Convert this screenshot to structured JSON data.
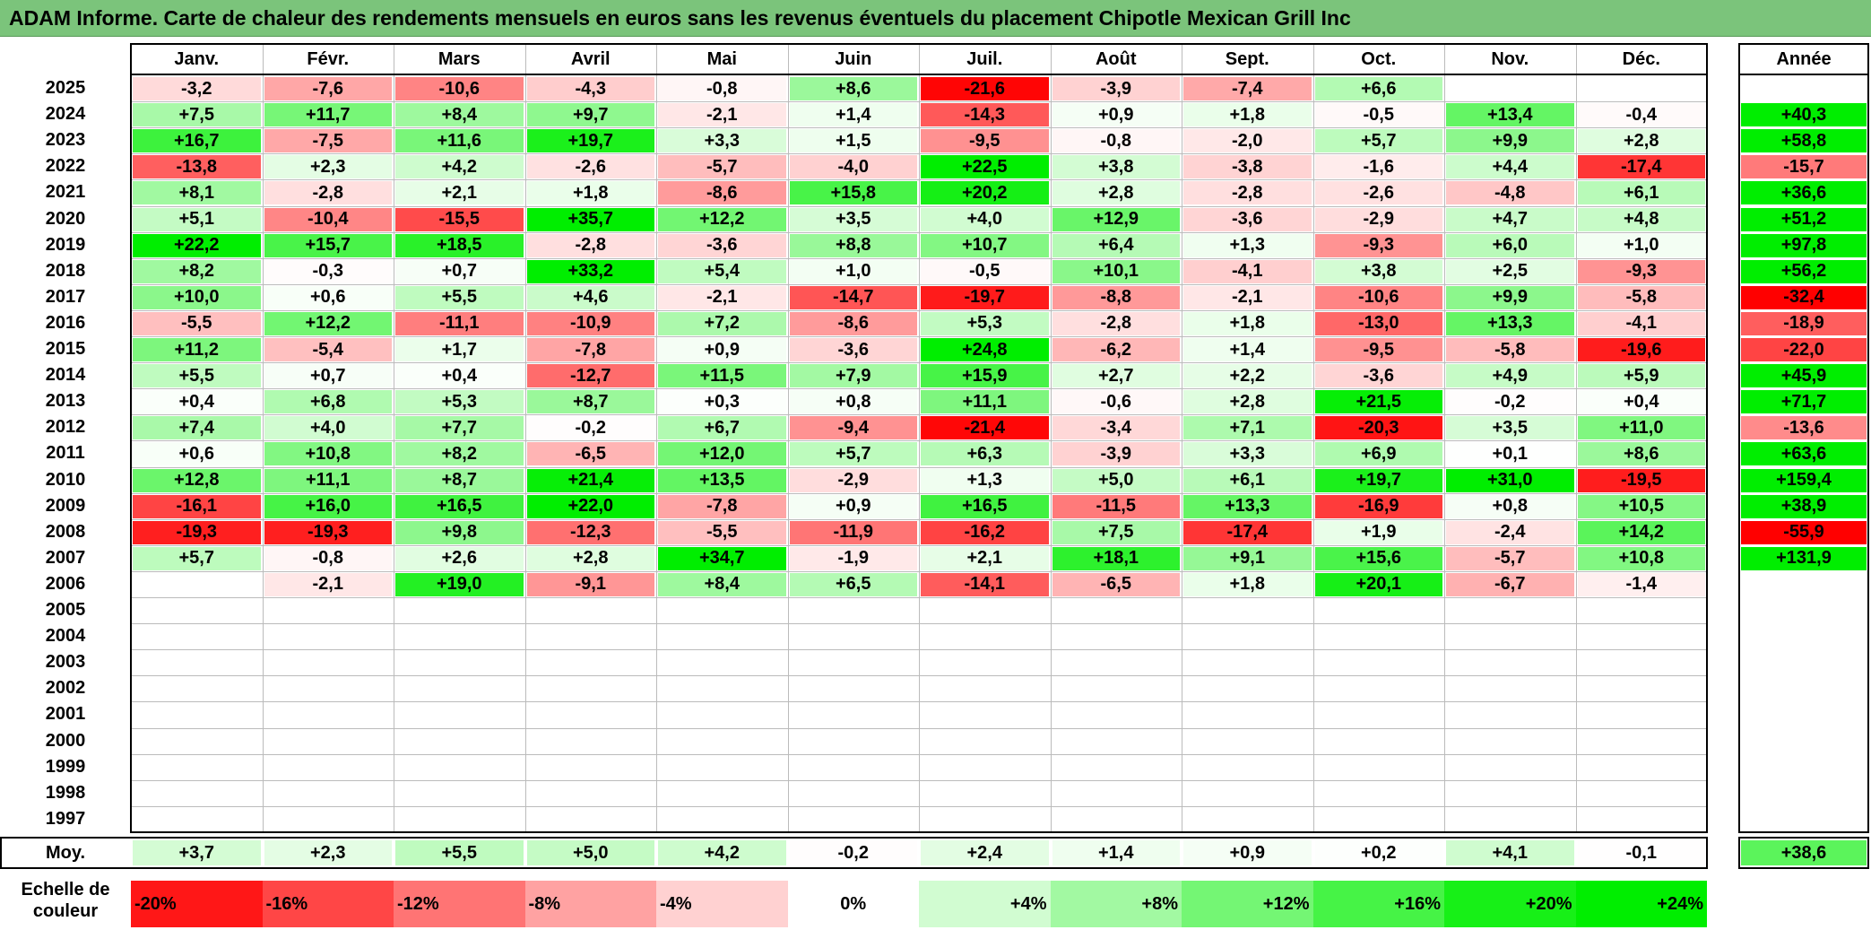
{
  "title": "ADAM Informe. Carte de chaleur des rendements mensuels en euros sans les revenus éventuels du placement Chipotle Mexican Grill Inc",
  "chart_data": {
    "type": "heatmap",
    "title": "ADAM Informe. Carte de chaleur des rendements mensuels en euros sans les revenus éventuels du placement Chipotle Mexican Grill Inc",
    "columns": [
      "Janv.",
      "Févr.",
      "Mars",
      "Avril",
      "Mai",
      "Juin",
      "Juil.",
      "Août",
      "Sept.",
      "Oct.",
      "Nov.",
      "Déc."
    ],
    "year_column_label": "Année",
    "years": [
      "2025",
      "2024",
      "2023",
      "2022",
      "2021",
      "2020",
      "2019",
      "2018",
      "2017",
      "2016",
      "2015",
      "2014",
      "2013",
      "2012",
      "2011",
      "2010",
      "2009",
      "2008",
      "2007",
      "2006",
      "2005",
      "2004",
      "2003",
      "2002",
      "2001",
      "2000",
      "1999",
      "1998",
      "1997"
    ],
    "values": [
      [
        "-3,2",
        "-7,6",
        "-10,6",
        "-4,3",
        "-0,8",
        "+8,6",
        "-21,6",
        "-3,9",
        "-7,4",
        "+6,6",
        "",
        ""
      ],
      [
        "+7,5",
        "+11,7",
        "+8,4",
        "+9,7",
        "-2,1",
        "+1,4",
        "-14,3",
        "+0,9",
        "+1,8",
        "-0,5",
        "+13,4",
        "-0,4"
      ],
      [
        "+16,7",
        "-7,5",
        "+11,6",
        "+19,7",
        "+3,3",
        "+1,5",
        "-9,5",
        "-0,8",
        "-2,0",
        "+5,7",
        "+9,9",
        "+2,8"
      ],
      [
        "-13,8",
        "+2,3",
        "+4,2",
        "-2,6",
        "-5,7",
        "-4,0",
        "+22,5",
        "+3,8",
        "-3,8",
        "-1,6",
        "+4,4",
        "-17,4"
      ],
      [
        "+8,1",
        "-2,8",
        "+2,1",
        "+1,8",
        "-8,6",
        "+15,8",
        "+20,2",
        "+2,8",
        "-2,8",
        "-2,6",
        "-4,8",
        "+6,1"
      ],
      [
        "+5,1",
        "-10,4",
        "-15,5",
        "+35,7",
        "+12,2",
        "+3,5",
        "+4,0",
        "+12,9",
        "-3,6",
        "-2,9",
        "+4,7",
        "+4,8"
      ],
      [
        "+22,2",
        "+15,7",
        "+18,5",
        "-2,8",
        "-3,6",
        "+8,8",
        "+10,7",
        "+6,4",
        "+1,3",
        "-9,3",
        "+6,0",
        "+1,0"
      ],
      [
        "+8,2",
        "-0,3",
        "+0,7",
        "+33,2",
        "+5,4",
        "+1,0",
        "-0,5",
        "+10,1",
        "-4,1",
        "+3,8",
        "+2,5",
        "-9,3"
      ],
      [
        "+10,0",
        "+0,6",
        "+5,5",
        "+4,6",
        "-2,1",
        "-14,7",
        "-19,7",
        "-8,8",
        "-2,1",
        "-10,6",
        "+9,9",
        "-5,8"
      ],
      [
        "-5,5",
        "+12,2",
        "-11,1",
        "-10,9",
        "+7,2",
        "-8,6",
        "+5,3",
        "-2,8",
        "+1,8",
        "-13,0",
        "+13,3",
        "-4,1"
      ],
      [
        "+11,2",
        "-5,4",
        "+1,7",
        "-7,8",
        "+0,9",
        "-3,6",
        "+24,8",
        "-6,2",
        "+1,4",
        "-9,5",
        "-5,8",
        "-19,6"
      ],
      [
        "+5,5",
        "+0,7",
        "+0,4",
        "-12,7",
        "+11,5",
        "+7,9",
        "+15,9",
        "+2,7",
        "+2,2",
        "-3,6",
        "+4,9",
        "+5,9"
      ],
      [
        "+0,4",
        "+6,8",
        "+5,3",
        "+8,7",
        "+0,3",
        "+0,8",
        "+11,1",
        "-0,6",
        "+2,8",
        "+21,5",
        "-0,2",
        "+0,4"
      ],
      [
        "+7,4",
        "+4,0",
        "+7,7",
        "-0,2",
        "+6,7",
        "-9,4",
        "-21,4",
        "-3,4",
        "+7,1",
        "-20,3",
        "+3,5",
        "+11,0"
      ],
      [
        "+0,6",
        "+10,8",
        "+8,2",
        "-6,5",
        "+12,0",
        "+5,7",
        "+6,3",
        "-3,9",
        "+3,3",
        "+6,9",
        "+0,1",
        "+8,6"
      ],
      [
        "+12,8",
        "+11,1",
        "+8,7",
        "+21,4",
        "+13,5",
        "-2,9",
        "+1,3",
        "+5,0",
        "+6,1",
        "+19,7",
        "+31,0",
        "-19,5"
      ],
      [
        "-16,1",
        "+16,0",
        "+16,5",
        "+22,0",
        "-7,8",
        "+0,9",
        "+16,5",
        "-11,5",
        "+13,3",
        "-16,9",
        "+0,8",
        "+10,5"
      ],
      [
        "-19,3",
        "-19,3",
        "+9,8",
        "-12,3",
        "-5,5",
        "-11,9",
        "-16,2",
        "+7,5",
        "-17,4",
        "+1,9",
        "-2,4",
        "+14,2"
      ],
      [
        "+5,7",
        "-0,8",
        "+2,6",
        "+2,8",
        "+34,7",
        "-1,9",
        "+2,1",
        "+18,1",
        "+9,1",
        "+15,6",
        "-5,7",
        "+10,8"
      ],
      [
        "",
        "-2,1",
        "+19,0",
        "-9,1",
        "+8,4",
        "+6,5",
        "-14,1",
        "-6,5",
        "+1,8",
        "+20,1",
        "-6,7",
        "-1,4"
      ],
      [
        "",
        "",
        "",
        "",
        "",
        "",
        "",
        "",
        "",
        "",
        "",
        ""
      ],
      [
        "",
        "",
        "",
        "",
        "",
        "",
        "",
        "",
        "",
        "",
        "",
        ""
      ],
      [
        "",
        "",
        "",
        "",
        "",
        "",
        "",
        "",
        "",
        "",
        "",
        ""
      ],
      [
        "",
        "",
        "",
        "",
        "",
        "",
        "",
        "",
        "",
        "",
        "",
        ""
      ],
      [
        "",
        "",
        "",
        "",
        "",
        "",
        "",
        "",
        "",
        "",
        "",
        ""
      ],
      [
        "",
        "",
        "",
        "",
        "",
        "",
        "",
        "",
        "",
        "",
        "",
        ""
      ],
      [
        "",
        "",
        "",
        "",
        "",
        "",
        "",
        "",
        "",
        "",
        "",
        ""
      ],
      [
        "",
        "",
        "",
        "",
        "",
        "",
        "",
        "",
        "",
        "",
        "",
        ""
      ],
      [
        "",
        "",
        "",
        "",
        "",
        "",
        "",
        "",
        "",
        "",
        "",
        ""
      ]
    ],
    "annual": [
      "",
      "+40,3",
      "+58,8",
      "-15,7",
      "+36,6",
      "+51,2",
      "+97,8",
      "+56,2",
      "-32,4",
      "-18,9",
      "-22,0",
      "+45,9",
      "+71,7",
      "-13,6",
      "+63,6",
      "+159,4",
      "+38,9",
      "-55,9",
      "+131,9",
      "",
      "",
      "",
      "",
      "",
      "",
      "",
      "",
      "",
      ""
    ],
    "average_label": "Moy.",
    "averages": [
      "+3,7",
      "+2,3",
      "+5,5",
      "+5,0",
      "+4,2",
      "-0,2",
      "+2,4",
      "+1,4",
      "+0,9",
      "+0,2",
      "+4,1",
      "-0,1"
    ],
    "average_annual": "+38,6",
    "scale_label_line1": "Echelle de",
    "scale_label_line2": "couleur",
    "scale": [
      {
        "label": "-20%",
        "value": -20,
        "align": "left"
      },
      {
        "label": "-16%",
        "value": -16,
        "align": "left"
      },
      {
        "label": "-12%",
        "value": -12,
        "align": "left"
      },
      {
        "label": "-8%",
        "value": -8,
        "align": "left"
      },
      {
        "label": "-4%",
        "value": -4,
        "align": "left"
      },
      {
        "label": "0%",
        "value": 0,
        "align": "center"
      },
      {
        "label": "+4%",
        "value": 4,
        "align": "right"
      },
      {
        "label": "+8%",
        "value": 8,
        "align": "right"
      },
      {
        "label": "+12%",
        "value": 12,
        "align": "right"
      },
      {
        "label": "+16%",
        "value": 16,
        "align": "right"
      },
      {
        "label": "+20%",
        "value": 20,
        "align": "right"
      },
      {
        "label": "+24%",
        "value": 24,
        "align": "right"
      }
    ],
    "colors": {
      "negative_max": "#ff0000",
      "positive_max": "#00ee00",
      "neutral": "#ffffff"
    }
  }
}
